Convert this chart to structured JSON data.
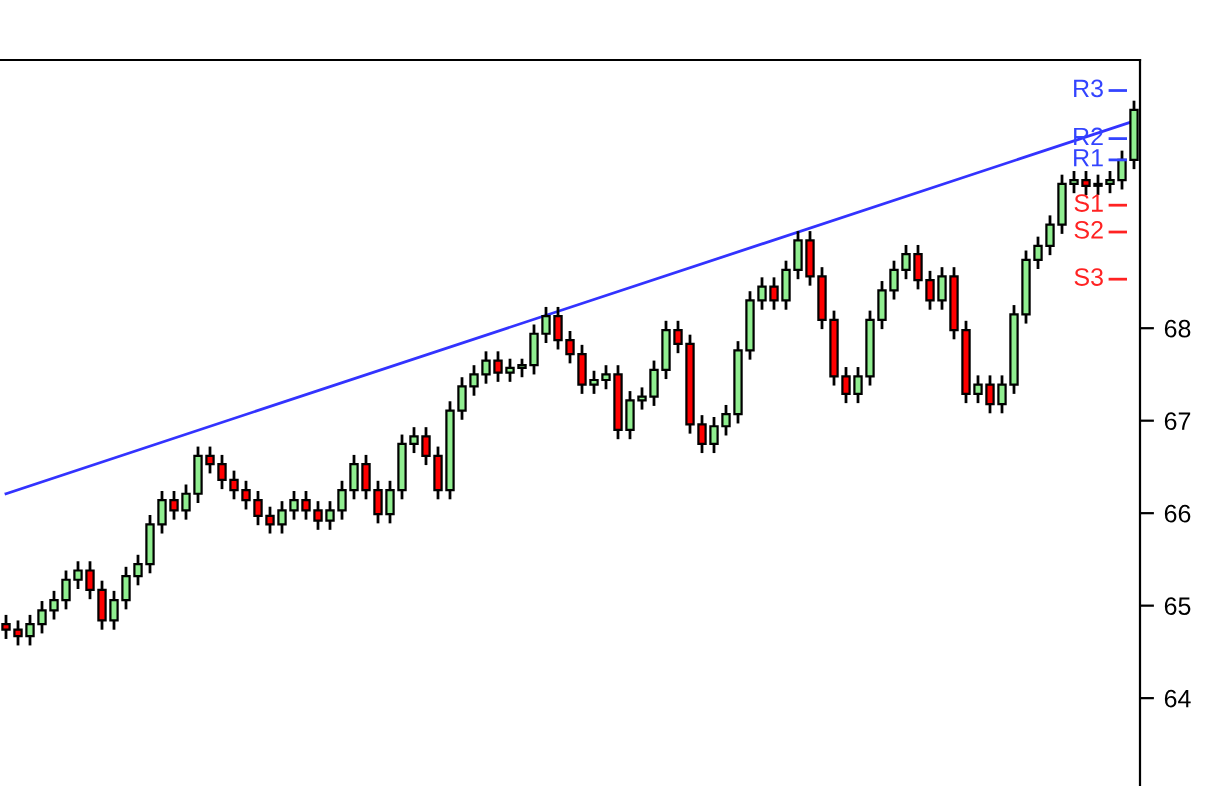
{
  "chart_data": {
    "type": "candlestick",
    "categories": [
      null,
      null,
      null,
      null,
      null,
      null,
      null,
      null,
      null,
      null,
      null,
      null,
      null,
      null,
      null,
      null,
      null,
      null,
      null,
      null,
      null,
      null,
      null,
      null,
      null,
      null,
      null,
      null,
      null,
      null,
      null,
      null,
      null,
      null,
      null,
      null,
      null,
      null,
      null,
      null,
      null,
      null,
      null,
      null,
      null,
      null,
      null,
      null,
      null,
      null,
      null,
      null,
      null,
      null,
      null,
      null,
      null,
      null,
      null,
      null,
      null,
      null,
      null,
      null,
      null,
      null,
      null,
      null,
      null,
      null,
      null,
      null,
      null,
      null,
      null,
      null,
      null,
      null,
      null,
      null,
      null,
      null,
      null,
      null,
      null,
      null,
      null,
      null,
      null,
      null,
      null,
      null,
      null,
      null,
      null
    ],
    "ohlc": [
      [
        64.8,
        64.9,
        64.64,
        64.74
      ],
      [
        64.74,
        64.84,
        64.57,
        64.67
      ],
      [
        64.67,
        64.9,
        64.57,
        64.8
      ],
      [
        64.8,
        65.05,
        64.7,
        64.95
      ],
      [
        64.95,
        65.16,
        64.85,
        65.06
      ],
      [
        65.06,
        65.38,
        64.96,
        65.28
      ],
      [
        65.28,
        65.48,
        65.18,
        65.38
      ],
      [
        65.38,
        65.48,
        65.07,
        65.17
      ],
      [
        65.17,
        65.27,
        64.74,
        64.84
      ],
      [
        64.84,
        65.16,
        64.74,
        65.06
      ],
      [
        65.06,
        65.42,
        64.96,
        65.32
      ],
      [
        65.32,
        65.55,
        65.22,
        65.45
      ],
      [
        65.45,
        65.98,
        65.35,
        65.88
      ],
      [
        65.88,
        66.24,
        65.78,
        66.14
      ],
      [
        66.14,
        66.24,
        65.93,
        66.03
      ],
      [
        66.03,
        66.31,
        65.93,
        66.21
      ],
      [
        66.21,
        66.72,
        66.11,
        66.62
      ],
      [
        66.62,
        66.72,
        66.43,
        66.53
      ],
      [
        66.53,
        66.63,
        66.26,
        66.36
      ],
      [
        66.36,
        66.46,
        66.15,
        66.25
      ],
      [
        66.25,
        66.35,
        66.04,
        66.14
      ],
      [
        66.14,
        66.24,
        65.87,
        65.97
      ],
      [
        65.97,
        66.07,
        65.78,
        65.88
      ],
      [
        65.88,
        66.13,
        65.78,
        66.03
      ],
      [
        66.03,
        66.24,
        65.93,
        66.14
      ],
      [
        66.14,
        66.24,
        65.93,
        66.03
      ],
      [
        66.03,
        66.13,
        65.82,
        65.92
      ],
      [
        65.92,
        66.13,
        65.82,
        66.03
      ],
      [
        66.03,
        66.35,
        65.93,
        66.25
      ],
      [
        66.25,
        66.63,
        66.15,
        66.53
      ],
      [
        66.53,
        66.63,
        66.15,
        66.25
      ],
      [
        66.25,
        66.35,
        65.89,
        65.99
      ],
      [
        65.99,
        66.35,
        65.89,
        66.25
      ],
      [
        66.25,
        66.85,
        66.15,
        66.75
      ],
      [
        66.75,
        66.93,
        66.65,
        66.83
      ],
      [
        66.83,
        66.93,
        66.52,
        66.62
      ],
      [
        66.62,
        66.72,
        66.15,
        66.25
      ],
      [
        66.25,
        67.21,
        66.15,
        67.11
      ],
      [
        67.11,
        67.47,
        67.01,
        67.37
      ],
      [
        67.37,
        67.6,
        67.27,
        67.5
      ],
      [
        67.5,
        67.75,
        67.4,
        67.65
      ],
      [
        67.65,
        67.75,
        67.42,
        67.52
      ],
      [
        67.52,
        67.67,
        67.42,
        67.57
      ],
      [
        67.57,
        67.67,
        67.47,
        67.6
      ],
      [
        67.6,
        68.04,
        67.5,
        67.94
      ],
      [
        67.94,
        68.23,
        67.84,
        68.13
      ],
      [
        68.13,
        68.23,
        67.77,
        67.87
      ],
      [
        67.87,
        67.97,
        67.62,
        67.72
      ],
      [
        67.72,
        67.82,
        67.29,
        67.39
      ],
      [
        67.39,
        67.54,
        67.29,
        67.44
      ],
      [
        67.44,
        67.6,
        67.34,
        67.5
      ],
      [
        67.5,
        67.6,
        66.8,
        66.9
      ],
      [
        66.9,
        67.32,
        66.8,
        67.22
      ],
      [
        67.22,
        67.36,
        67.12,
        67.26
      ],
      [
        67.26,
        67.65,
        67.16,
        67.55
      ],
      [
        67.55,
        68.08,
        67.45,
        67.98
      ],
      [
        67.98,
        68.08,
        67.73,
        67.83
      ],
      [
        67.83,
        67.93,
        66.86,
        66.96
      ],
      [
        66.96,
        67.06,
        66.65,
        66.75
      ],
      [
        66.75,
        67.04,
        66.65,
        66.94
      ],
      [
        66.94,
        67.17,
        66.84,
        67.07
      ],
      [
        67.07,
        67.86,
        66.97,
        67.76
      ],
      [
        67.76,
        68.4,
        67.66,
        68.3
      ],
      [
        68.3,
        68.55,
        68.2,
        68.45
      ],
      [
        68.45,
        68.55,
        68.2,
        68.3
      ],
      [
        68.3,
        68.73,
        68.2,
        68.63
      ],
      [
        68.63,
        69.05,
        68.53,
        68.95
      ],
      [
        68.95,
        69.05,
        68.46,
        68.56
      ],
      [
        68.56,
        68.66,
        67.99,
        68.09
      ],
      [
        68.09,
        68.19,
        67.38,
        67.48
      ],
      [
        67.48,
        67.58,
        67.19,
        67.29
      ],
      [
        67.29,
        67.58,
        67.19,
        67.48
      ],
      [
        67.48,
        68.19,
        67.38,
        68.09
      ],
      [
        68.09,
        68.51,
        67.99,
        68.41
      ],
      [
        68.41,
        68.73,
        68.31,
        68.63
      ],
      [
        68.63,
        68.9,
        68.53,
        68.8
      ],
      [
        68.8,
        68.9,
        68.42,
        68.52
      ],
      [
        68.52,
        68.62,
        68.2,
        68.3
      ],
      [
        68.3,
        68.66,
        68.2,
        68.56
      ],
      [
        68.56,
        68.66,
        67.88,
        67.98
      ],
      [
        67.98,
        68.08,
        67.19,
        67.29
      ],
      [
        67.29,
        67.49,
        67.19,
        67.39
      ],
      [
        67.39,
        67.49,
        67.08,
        67.18
      ],
      [
        67.18,
        67.49,
        67.08,
        67.39
      ],
      [
        67.39,
        68.25,
        67.29,
        68.15
      ],
      [
        68.15,
        68.84,
        68.05,
        68.74
      ],
      [
        68.74,
        68.99,
        68.64,
        68.89
      ],
      [
        68.89,
        69.22,
        68.79,
        69.12
      ],
      [
        69.12,
        69.66,
        69.02,
        69.56
      ],
      [
        69.56,
        69.7,
        69.46,
        69.6
      ],
      [
        69.6,
        69.7,
        69.44,
        69.54
      ],
      [
        69.54,
        69.66,
        69.44,
        69.56
      ],
      [
        69.56,
        69.7,
        69.46,
        69.6
      ],
      [
        69.6,
        69.92,
        69.5,
        69.82
      ],
      [
        69.82,
        70.46,
        69.72,
        70.36
      ]
    ],
    "colors": [
      "#ff0000",
      "#ff0000",
      "#90ee90",
      "#90ee90",
      "#90ee90",
      "#90ee90",
      "#90ee90",
      "#ff0000",
      "#ff0000",
      "#90ee90",
      "#90ee90",
      "#90ee90",
      "#90ee90",
      "#90ee90",
      "#ff0000",
      "#90ee90",
      "#90ee90",
      "#ff0000",
      "#ff0000",
      "#ff0000",
      "#ff0000",
      "#ff0000",
      "#ff0000",
      "#90ee90",
      "#90ee90",
      "#ff0000",
      "#ff0000",
      "#90ee90",
      "#90ee90",
      "#90ee90",
      "#ff0000",
      "#ff0000",
      "#90ee90",
      "#90ee90",
      "#90ee90",
      "#ff0000",
      "#ff0000",
      "#90ee90",
      "#90ee90",
      "#90ee90",
      "#90ee90",
      "#ff0000",
      "#90ee90",
      "#90ee90",
      "#90ee90",
      "#90ee90",
      "#ff0000",
      "#ff0000",
      "#ff0000",
      "#90ee90",
      "#90ee90",
      "#ff0000",
      "#90ee90",
      "#90ee90",
      "#90ee90",
      "#90ee90",
      "#ff0000",
      "#ff0000",
      "#ff0000",
      "#90ee90",
      "#90ee90",
      "#90ee90",
      "#90ee90",
      "#90ee90",
      "#ff0000",
      "#90ee90",
      "#90ee90",
      "#ff0000",
      "#ff0000",
      "#ff0000",
      "#ff0000",
      "#90ee90",
      "#90ee90",
      "#90ee90",
      "#90ee90",
      "#90ee90",
      "#ff0000",
      "#ff0000",
      "#90ee90",
      "#ff0000",
      "#ff0000",
      "#90ee90",
      "#ff0000",
      "#90ee90",
      "#90ee90",
      "#90ee90",
      "#90ee90",
      "#90ee90",
      "#90ee90",
      "#90ee90",
      "#ff0000",
      "#90ee90",
      "#90ee90",
      "#90ee90",
      "#90ee90"
    ],
    "series": [
      {
        "type": "line",
        "color": "#3333ff",
        "values": [
          66.21,
          null,
          null,
          null,
          null,
          null,
          null,
          null,
          null,
          null,
          null,
          null,
          null,
          null,
          null,
          null,
          null,
          null,
          null,
          null,
          null,
          null,
          null,
          null,
          null,
          null,
          null,
          null,
          null,
          null,
          null,
          null,
          null,
          null,
          null,
          null,
          null,
          null,
          null,
          null,
          null,
          null,
          null,
          null,
          null,
          null,
          null,
          null,
          null,
          null,
          null,
          null,
          null,
          null,
          null,
          null,
          null,
          null,
          null,
          null,
          null,
          null,
          null,
          null,
          null,
          null,
          null,
          null,
          null,
          null,
          null,
          null,
          null,
          null,
          null,
          null,
          null,
          null,
          null,
          null,
          null,
          null,
          null,
          null,
          null,
          null,
          null,
          null,
          null,
          null,
          null,
          null,
          null,
          null,
          70.24
        ]
      }
    ],
    "ref_lines": [
      {
        "axis": "y",
        "value": 70.57,
        "label": "R3",
        "color": "#3344ff"
      },
      {
        "axis": "y",
        "value": 70.05,
        "label": "R2",
        "color": "#3344ff"
      },
      {
        "axis": "y",
        "value": 69.82,
        "label": "R1",
        "color": "#3344ff"
      },
      {
        "axis": "y",
        "value": 69.33,
        "label": "S1",
        "color": "#ff2222"
      },
      {
        "axis": "y",
        "value": 69.04,
        "label": "S2",
        "color": "#ff2222"
      },
      {
        "axis": "y",
        "value": 68.53,
        "label": "S3",
        "color": "#ff2222"
      }
    ],
    "ylim": [
      63.05,
      70.9
    ],
    "yticks": [
      64,
      65,
      66,
      67,
      68
    ],
    "tick_labels": "y"
  }
}
